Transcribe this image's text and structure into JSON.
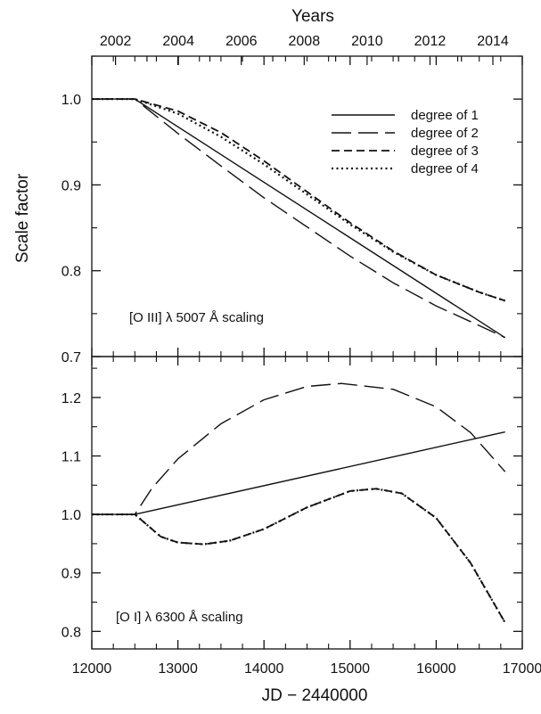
{
  "chart_data": [
    {
      "type": "line",
      "panel": "top",
      "annotation": "[O III] λ 5007 Å scaling",
      "ylabel": "Scale factor",
      "top_axis_title": "Years",
      "top_ticks": [
        "2002",
        "2004",
        "2006",
        "2008",
        "2010",
        "2012",
        "2014"
      ],
      "xlim": [
        12000,
        17000
      ],
      "ylim": [
        0.7,
        1.05
      ],
      "y_ticks": [
        "0.7",
        "0.8",
        "0.9",
        "1.0"
      ],
      "legend_position": "top-right",
      "series": [
        {
          "name": "degree of 1",
          "dash": "solid",
          "x": [
            12000,
            12500,
            16800
          ],
          "y": [
            1.0,
            1.0,
            0.722
          ]
        },
        {
          "name": "degree of 2",
          "dash": "long-dash",
          "x": [
            12000,
            12500,
            13000,
            13500,
            14000,
            14500,
            15000,
            15500,
            16000,
            16500,
            16800
          ],
          "y": [
            1.0,
            1.0,
            0.96,
            0.922,
            0.885,
            0.851,
            0.817,
            0.786,
            0.759,
            0.736,
            0.722
          ]
        },
        {
          "name": "degree of 3",
          "dash": "short-dash",
          "x": [
            12000,
            12500,
            13000,
            13500,
            14000,
            14500,
            15000,
            15500,
            16000,
            16500,
            16800
          ],
          "y": [
            1.0,
            1.0,
            0.986,
            0.961,
            0.928,
            0.892,
            0.856,
            0.823,
            0.795,
            0.775,
            0.765
          ]
        },
        {
          "name": "degree of 4",
          "dash": "dotted",
          "x": [
            12000,
            12500,
            13000,
            13500,
            14000,
            14500,
            15000,
            15500,
            16000,
            16500,
            16800
          ],
          "y": [
            1.0,
            1.0,
            0.983,
            0.956,
            0.924,
            0.889,
            0.854,
            0.822,
            0.795,
            0.775,
            0.765
          ]
        }
      ]
    },
    {
      "type": "line",
      "panel": "bottom",
      "annotation": "[O I] λ 6300 Å scaling",
      "xlabel": "JD − 2440000",
      "xlim": [
        12000,
        17000
      ],
      "x_ticks": [
        "12000",
        "13000",
        "14000",
        "15000",
        "16000",
        "17000"
      ],
      "ylim": [
        0.77,
        1.27
      ],
      "y_ticks": [
        "0.8",
        "0.9",
        "1.0",
        "1.1",
        "1.2"
      ],
      "series": [
        {
          "name": "degree of 1",
          "dash": "solid",
          "x": [
            12000,
            12500,
            16800
          ],
          "y": [
            1.0,
            1.0,
            1.141
          ]
        },
        {
          "name": "degree of 2",
          "dash": "long-dash",
          "x": [
            12000,
            12500,
            12700,
            13000,
            13500,
            14000,
            14500,
            14900,
            15500,
            16000,
            16400,
            16800
          ],
          "y": [
            1.0,
            1.0,
            1.045,
            1.095,
            1.155,
            1.196,
            1.219,
            1.224,
            1.214,
            1.184,
            1.14,
            1.073
          ]
        },
        {
          "name": "degree of 3",
          "dash": "short-dash",
          "x": [
            12000,
            12500,
            12800,
            13000,
            13300,
            13600,
            14000,
            14500,
            15000,
            15300,
            15600,
            16000,
            16400,
            16800
          ],
          "y": [
            1.0,
            1.0,
            0.962,
            0.952,
            0.949,
            0.955,
            0.975,
            1.012,
            1.04,
            1.044,
            1.036,
            0.994,
            0.917,
            0.815
          ]
        },
        {
          "name": "degree of 4",
          "dash": "dotted",
          "x": [
            12000,
            12500,
            12800,
            13000,
            13300,
            13600,
            14000,
            14500,
            15000,
            15300,
            15600,
            16000,
            16400,
            16800
          ],
          "y": [
            1.0,
            1.0,
            0.962,
            0.952,
            0.949,
            0.955,
            0.975,
            1.012,
            1.04,
            1.044,
            1.036,
            0.994,
            0.917,
            0.815
          ]
        }
      ]
    }
  ]
}
